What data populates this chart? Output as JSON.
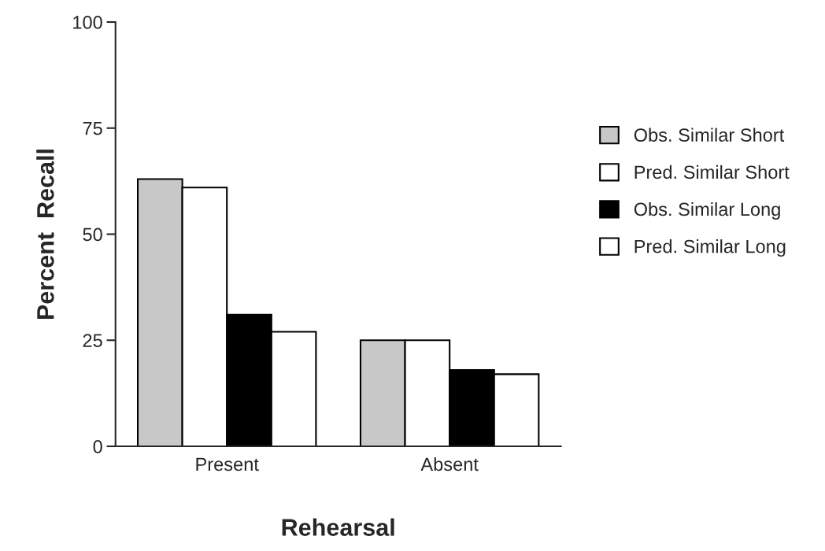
{
  "chart_data": {
    "type": "bar",
    "xlabel": "Rehearsal",
    "ylabel": "Percent  Recall",
    "categories": [
      "Present",
      "Absent"
    ],
    "series": [
      {
        "name": "Obs. Similar Short",
        "color": "#c8c8c8",
        "values": [
          63,
          25
        ]
      },
      {
        "name": "Pred. Similar Short",
        "color": "#ffffff",
        "values": [
          61,
          25
        ]
      },
      {
        "name": "Obs. Similar Long",
        "color": "#000000",
        "values": [
          31,
          18
        ]
      },
      {
        "name": "Pred. Similar Long",
        "color": "#ffffff",
        "values": [
          27,
          17
        ]
      }
    ],
    "ylim": [
      0,
      100
    ],
    "yticks": [
      0,
      25,
      50,
      75,
      100
    ],
    "grid": false,
    "legend": "right"
  }
}
